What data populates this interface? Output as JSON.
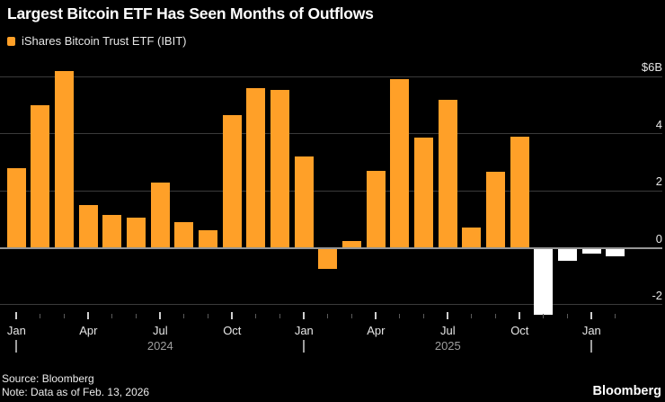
{
  "page": {
    "background": "#000000"
  },
  "header": {
    "title": "Largest Bitcoin ETF Has Seen Months of Outflows",
    "legend_label": "iShares Bitcoin Trust ETF (IBIT)",
    "legend_color": "#FFA028"
  },
  "chart_data": {
    "type": "bar",
    "title": "Largest Bitcoin ETF Has Seen Months of Outflows",
    "series_name": "iShares Bitcoin Trust ETF (IBIT)",
    "unit": "monthly net flows, billions of US dollars",
    "categories": [
      "Jan 2024",
      "Feb 2024",
      "Mar 2024",
      "Apr 2024",
      "May 2024",
      "Jun 2024",
      "Jul 2024",
      "Aug 2024",
      "Sep 2024",
      "Oct 2024",
      "Nov 2024",
      "Dec 2024",
      "Jan 2025",
      "Feb 2025",
      "Mar 2025",
      "Apr 2025",
      "May 2025",
      "Jun 2025",
      "Jul 2025",
      "Aug 2025",
      "Sep 2025",
      "Oct 2025",
      "Nov 2025",
      "Dec 2025",
      "Jan 2026",
      "Feb 2026"
    ],
    "values": [
      2.8,
      5.0,
      6.2,
      1.5,
      1.15,
      1.05,
      2.3,
      0.9,
      0.6,
      4.65,
      5.6,
      5.55,
      3.2,
      -0.75,
      0.25,
      2.7,
      5.9,
      3.85,
      5.2,
      0.7,
      2.65,
      3.9,
      -2.35,
      -0.45,
      -0.2,
      -0.3
    ],
    "bar_color": "#FFA028",
    "highlight_color": "#FFFFFF",
    "highlight_months": [
      "Nov 2025",
      "Dec 2025",
      "Jan 2026",
      "Feb 2026"
    ],
    "ylim": [
      -2.6,
      6.6
    ],
    "yticks": [
      {
        "value": 6,
        "label": "$6B"
      },
      {
        "value": 4,
        "label": "4"
      },
      {
        "value": 2,
        "label": "2"
      },
      {
        "value": 0,
        "label": "0"
      },
      {
        "value": -2,
        "label": "-2"
      }
    ],
    "grid": "horizontal",
    "legend_position": "top-left",
    "x_month_labels": [
      {
        "index": 0,
        "label": "Jan"
      },
      {
        "index": 3,
        "label": "Apr"
      },
      {
        "index": 6,
        "label": "Jul"
      },
      {
        "index": 9,
        "label": "Oct"
      },
      {
        "index": 12,
        "label": "Jan"
      },
      {
        "index": 15,
        "label": "Apr"
      },
      {
        "index": 18,
        "label": "Jul"
      },
      {
        "index": 21,
        "label": "Oct"
      },
      {
        "index": 24,
        "label": "Jan"
      }
    ],
    "year_dividers": [
      0,
      12,
      24
    ],
    "year_labels": [
      {
        "label": "2024",
        "start_index": 0,
        "end_index": 12
      },
      {
        "label": "2025",
        "start_index": 12,
        "end_index": 24
      }
    ],
    "colors": {
      "gridline": "#3a3a3a",
      "zero_line": "#969696",
      "axis_text": "#e6e6e6",
      "year_text": "#9e9e9e"
    }
  },
  "footer": {
    "source": "Source: Bloomberg",
    "note": "Note: Data as of Feb. 13, 2026",
    "brand": "Bloomberg"
  }
}
